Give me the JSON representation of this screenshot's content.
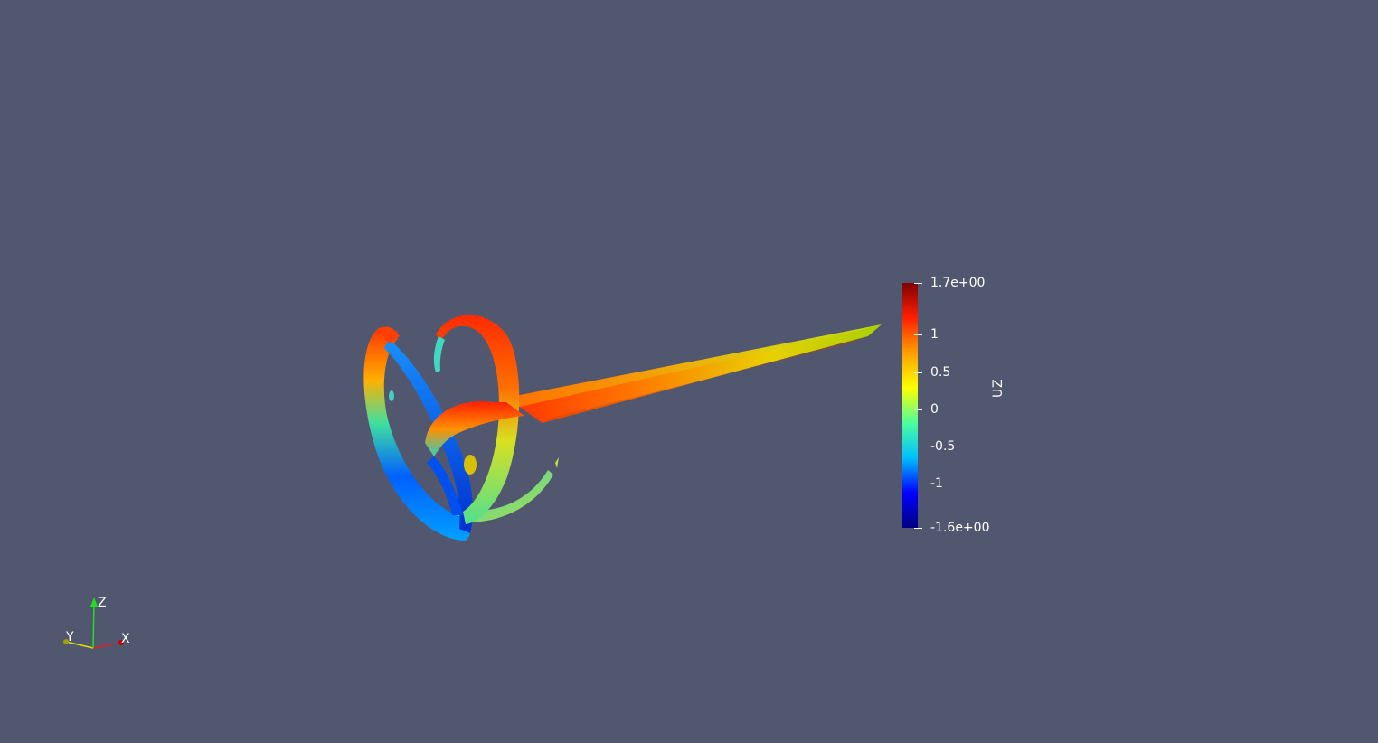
{
  "colorbar": {
    "title": "UZ",
    "colormap": "jet",
    "colors": [
      "#00007f",
      "#0000ff",
      "#00bfff",
      "#4cff9c",
      "#ffff00",
      "#ff9f00",
      "#ff2000",
      "#7f0000"
    ],
    "range": [
      -1.6,
      1.7
    ],
    "labels": [
      {
        "text": "1.7e+00",
        "value": 1.7
      },
      {
        "text": "1",
        "value": 1
      },
      {
        "text": "0.5",
        "value": 0.5
      },
      {
        "text": "0",
        "value": 0
      },
      {
        "text": "-0.5",
        "value": -0.5
      },
      {
        "text": "-1",
        "value": -1
      },
      {
        "text": "-1.6e+00",
        "value": -1.6
      }
    ]
  },
  "axes": {
    "x_label": "X",
    "y_label": "Y",
    "z_label": "Z",
    "x_color": "#e02020",
    "y_color": "#e0e000",
    "z_color": "#20e020"
  },
  "background_color": "#525770"
}
